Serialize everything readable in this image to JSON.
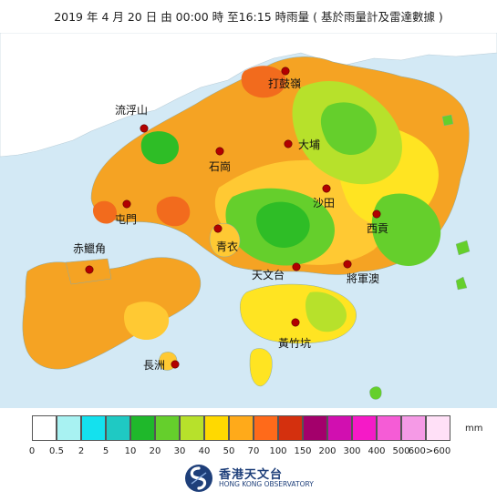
{
  "title": "2019 年 4 月 20 日 由 00:00 時 至16:15 時雨量 ( 基於雨量計及雷達數據 )",
  "map": {
    "colors": {
      "sea": "#d3e9f5",
      "mainland": "#ffffff",
      "orange": "#f5a323",
      "amber": "#ffc933",
      "yellow": "#ffe422",
      "yellowgreen": "#b7e12b",
      "green": "#65cf2c",
      "darkgreen": "#2ebd26",
      "redorange": "#f26b1d",
      "marker": "#b20000"
    },
    "places": [
      {
        "name": "打鼓嶺",
        "id": "ta-kwu-ling"
      },
      {
        "name": "流浮山",
        "id": "lau-fau-shan"
      },
      {
        "name": "大埔",
        "id": "tai-po"
      },
      {
        "name": "石崗",
        "id": "shek-kong"
      },
      {
        "name": "沙田",
        "id": "sha-tin"
      },
      {
        "name": "屯門",
        "id": "tuen-mun"
      },
      {
        "name": "西貢",
        "id": "sai-kung"
      },
      {
        "name": "青衣",
        "id": "tsing-yi"
      },
      {
        "name": "赤鱲角",
        "id": "chek-lap-kok"
      },
      {
        "name": "天文台",
        "id": "observatory"
      },
      {
        "name": "將軍澳",
        "id": "tseung-kwan-o"
      },
      {
        "name": "黃竹坑",
        "id": "wong-chuk-hang"
      },
      {
        "name": "長洲",
        "id": "cheung-chau"
      }
    ]
  },
  "legend": {
    "unit": "mm",
    "bins": [
      {
        "color": "#ffffff"
      },
      {
        "color": "#a8f2f2"
      },
      {
        "color": "#14e1ee"
      },
      {
        "color": "#1fc9c3"
      },
      {
        "color": "#1fb82b"
      },
      {
        "color": "#65cf2c"
      },
      {
        "color": "#b7e12b"
      },
      {
        "color": "#ffd900"
      },
      {
        "color": "#ffaa1a"
      },
      {
        "color": "#ff6a1a"
      },
      {
        "color": "#d4300e"
      },
      {
        "color": "#a3006b"
      },
      {
        "color": "#d10fb0"
      },
      {
        "color": "#f51ac7"
      },
      {
        "color": "#f55cd6"
      },
      {
        "color": "#f59ae6"
      },
      {
        "color": "#ffe0f7"
      }
    ],
    "ticks": [
      "0",
      "0.5",
      "2",
      "5",
      "10",
      "20",
      "30",
      "40",
      "50",
      "70",
      "100",
      "150",
      "200",
      "300",
      "400",
      "500",
      "600>600"
    ]
  },
  "logo": {
    "name_cn": "香港天文台",
    "name_en": "HONG KONG OBSERVATORY"
  }
}
